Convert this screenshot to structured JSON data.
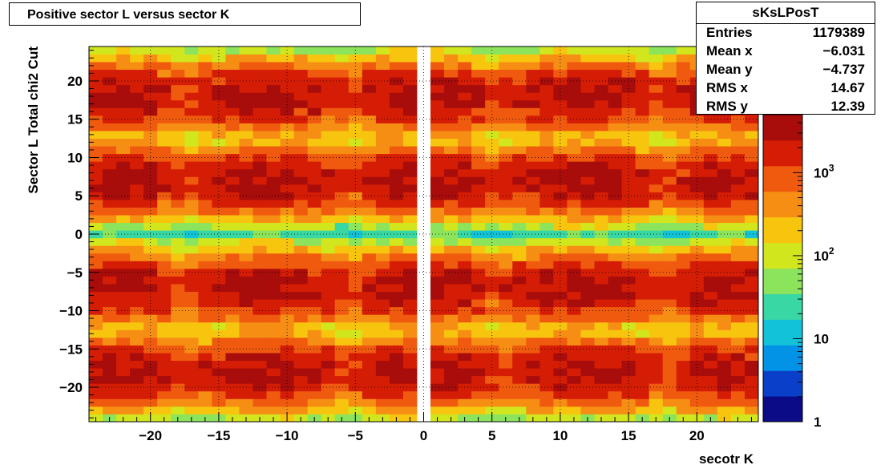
{
  "title": "Positive sector L versus sector K",
  "stats": {
    "name": "sKsLPosT",
    "rows": [
      {
        "key": "Entries",
        "value": "1179389"
      },
      {
        "key": "Mean x",
        "value": "−6.031"
      },
      {
        "key": "Mean y",
        "value": "−4.737"
      },
      {
        "key": "RMS x",
        "value": "14.67"
      },
      {
        "key": "RMS y",
        "value": "12.39"
      }
    ]
  },
  "chart_data": {
    "type": "heatmap",
    "xlabel": "secotr K",
    "ylabel": "Sector L  Total chi2 Cut",
    "xlim": [
      -24.5,
      24.5
    ],
    "ylim": [
      -24.5,
      24.5
    ],
    "bin_width": 1,
    "x_ticks": [
      {
        "v": -20,
        "label": "−20"
      },
      {
        "v": -15,
        "label": "−15"
      },
      {
        "v": -10,
        "label": "−10"
      },
      {
        "v": -5,
        "label": "−5"
      },
      {
        "v": 0,
        "label": "0"
      },
      {
        "v": 5,
        "label": "5"
      },
      {
        "v": 10,
        "label": "10"
      },
      {
        "v": 15,
        "label": "15"
      },
      {
        "v": 20,
        "label": "20"
      }
    ],
    "y_ticks": [
      {
        "v": -20,
        "label": "−20"
      },
      {
        "v": -15,
        "label": "−15"
      },
      {
        "v": -10,
        "label": "−10"
      },
      {
        "v": -5,
        "label": "−5"
      },
      {
        "v": 0,
        "label": "0"
      },
      {
        "v": 5,
        "label": "5"
      },
      {
        "v": 10,
        "label": "10"
      },
      {
        "v": 15,
        "label": "15"
      },
      {
        "v": 20,
        "label": "20"
      }
    ],
    "grid": true,
    "z_scale": "log",
    "zlim": [
      1,
      5000
    ],
    "z_ticks": [
      {
        "v": 1,
        "label": "1"
      },
      {
        "v": 10,
        "label": "10"
      },
      {
        "v": 100,
        "label": "10",
        "sup": "2"
      },
      {
        "v": 1000,
        "label": "10",
        "sup": "3"
      }
    ],
    "palette": [
      "#0b0a87",
      "#0a3fc9",
      "#0393e6",
      "#12c3d8",
      "#38d7a3",
      "#8ce35c",
      "#d2e61e",
      "#f7c50e",
      "#f68e14",
      "#f05a0e",
      "#d51d05",
      "#a80c0b"
    ],
    "cluster_peak_x": [
      -22,
      -11.5,
      -1.5,
      1.5,
      11.5,
      22
    ],
    "cluster_peak_y": [
      -18,
      -7,
      7,
      18
    ],
    "cluster_sigma_x": [
      3.2,
      4.6,
      2.6,
      2.6,
      4.6,
      3.2
    ],
    "cluster_sigma_y": 2.3,
    "peak_count": 3500
  }
}
